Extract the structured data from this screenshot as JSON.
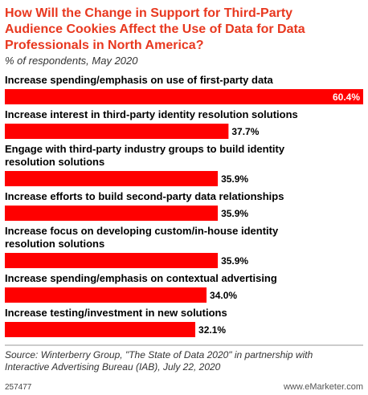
{
  "chart_data": {
    "type": "bar",
    "title_lines": [
      "How Will the Change in Support for Third-Party",
      "Audience Cookies Affect the Use of Data for Data",
      "Professionals in North America?"
    ],
    "subtitle": "% of respondents, May 2020",
    "categories": [
      [
        "Increase spending/emphasis on use of first-party data"
      ],
      [
        "Increase interest in third-party identity resolution solutions"
      ],
      [
        "Engage with third-party industry groups to build identity",
        "resolution solutions"
      ],
      [
        "Increase efforts to build second-party data relationships"
      ],
      [
        "Increase focus on developing custom/in-house identity",
        "resolution solutions"
      ],
      [
        "Increase spending/emphasis on contextual advertising"
      ],
      [
        "Increase testing/investment in new solutions"
      ]
    ],
    "values": [
      60.4,
      37.7,
      35.9,
      35.9,
      35.9,
      34.0,
      32.1
    ],
    "value_labels": [
      "60.4%",
      "37.7%",
      "35.9%",
      "35.9%",
      "35.9%",
      "34.0%",
      "32.1%"
    ],
    "xlim": [
      0,
      60.4
    ],
    "grid": false,
    "legend": "none",
    "colors": {
      "bar": "#ff0000",
      "title": "#e8381f",
      "text": "#000000",
      "value_on_bar": "#ffffff",
      "source": "#333333",
      "rule": "#999999"
    },
    "source_lines": [
      "Source: Winterberry Group, \"The State of Data 2020\" in partnership with",
      "Interactive Advertising Bureau (IAB), July 22, 2020"
    ],
    "chart_id": "257477",
    "footer_brand": "www.eMarketer.com"
  }
}
